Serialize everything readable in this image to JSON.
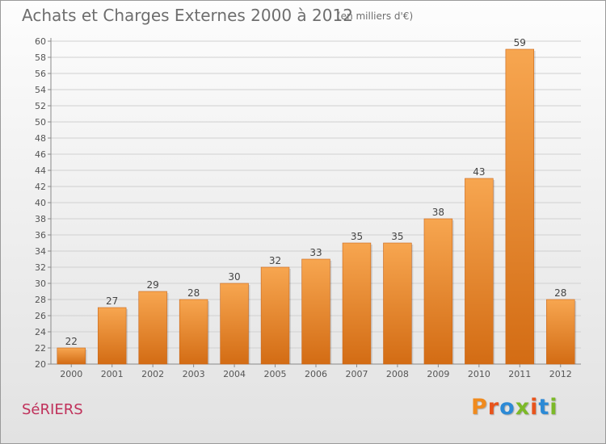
{
  "title": "Achats et Charges Externes 2000 à 2012",
  "subtitle": "(en milliers d'€)",
  "commune": "SéRIERS",
  "logo": {
    "text": "Proxiti",
    "letter_colors": [
      "#f08a1d",
      "#e8541c",
      "#2c8ad6",
      "#7cb928",
      "#e8541c",
      "#2c8ad6",
      "#7cb928"
    ]
  },
  "colors": {
    "bar_top": "#f7a650",
    "bar_bottom": "#d36c14",
    "commune": "#c0305a",
    "text": "#6e6e6e",
    "grid": "#d0d0d0"
  },
  "chart_data": {
    "type": "bar",
    "categories": [
      "2000",
      "2001",
      "2002",
      "2003",
      "2004",
      "2005",
      "2006",
      "2007",
      "2008",
      "2009",
      "2010",
      "2011",
      "2012"
    ],
    "values": [
      22,
      27,
      29,
      28,
      30,
      32,
      33,
      35,
      35,
      38,
      43,
      59,
      28
    ],
    "ylim": [
      20,
      60
    ],
    "yticks": [
      20,
      22,
      24,
      26,
      28,
      30,
      32,
      34,
      36,
      38,
      40,
      42,
      44,
      46,
      48,
      50,
      52,
      54,
      56,
      58,
      60
    ],
    "grid": true,
    "data_labels": true
  }
}
